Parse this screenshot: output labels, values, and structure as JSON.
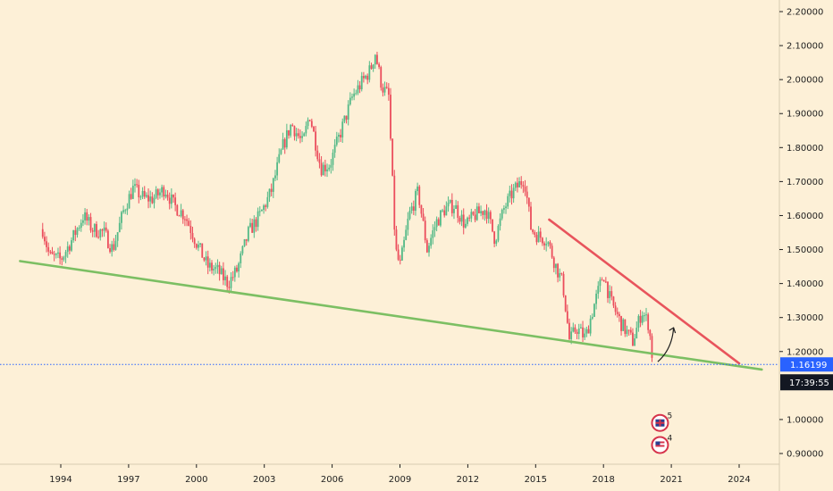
{
  "chart_data": {
    "type": "candlestick",
    "title": "",
    "xlabel": "",
    "ylabel": "",
    "ylim": [
      0.87,
      2.23
    ],
    "xlim": [
      1992.0,
      2026.0
    ],
    "x_ticks": [
      {
        "year": 1994,
        "label": "1994"
      },
      {
        "year": 1997,
        "label": "1997"
      },
      {
        "year": 2000,
        "label": "2000"
      },
      {
        "year": 2003,
        "label": "2003"
      },
      {
        "year": 2006,
        "label": "2006"
      },
      {
        "year": 2009,
        "label": "2009"
      },
      {
        "year": 2012,
        "label": "2012"
      },
      {
        "year": 2015,
        "label": "2015"
      },
      {
        "year": 2018,
        "label": "2018"
      },
      {
        "year": 2021,
        "label": "2021"
      },
      {
        "year": 2024,
        "label": "2024"
      }
    ],
    "y_ticks": [
      {
        "value": 2.2,
        "label": "2.20000"
      },
      {
        "value": 2.1,
        "label": "2.10000"
      },
      {
        "value": 2.0,
        "label": "2.00000"
      },
      {
        "value": 1.9,
        "label": "1.90000"
      },
      {
        "value": 1.8,
        "label": "1.80000"
      },
      {
        "value": 1.7,
        "label": "1.70000"
      },
      {
        "value": 1.6,
        "label": "1.60000"
      },
      {
        "value": 1.5,
        "label": "1.50000"
      },
      {
        "value": 1.4,
        "label": "1.40000"
      },
      {
        "value": 1.3,
        "label": "1.30000"
      },
      {
        "value": 1.2,
        "label": "1.20000"
      },
      {
        "value": 1.0,
        "label": "1.00000"
      },
      {
        "value": 0.9,
        "label": "0.90000"
      }
    ],
    "series": [
      {
        "name": "price",
        "x": [
          1993.2,
          1993.5,
          1994.0,
          1994.5,
          1995.0,
          1995.4,
          1995.9,
          1996.3,
          1996.8,
          1997.2,
          1997.7,
          1998.1,
          1998.6,
          1999.0,
          1999.5,
          2000.0,
          2000.5,
          2000.9,
          2001.4,
          2001.8,
          2002.3,
          2002.8,
          2003.3,
          2003.8,
          2004.2,
          2004.7,
          2005.0,
          2005.5,
          2005.9,
          2006.4,
          2006.9,
          2007.3,
          2007.7,
          2007.9,
          2008.2,
          2008.5,
          2008.8,
          2009.0,
          2009.4,
          2009.8,
          2010.2,
          2010.6,
          2011.0,
          2011.4,
          2011.9,
          2012.3,
          2012.8,
          2013.2,
          2013.6,
          2014.0,
          2014.5,
          2014.8,
          2015.1,
          2015.5,
          2015.9,
          2016.2,
          2016.5,
          2016.8,
          2017.2,
          2017.6,
          2018.0,
          2018.3,
          2018.8,
          2019.3,
          2019.7,
          2020.0,
          2020.2
        ],
        "close": [
          1.56,
          1.48,
          1.47,
          1.53,
          1.6,
          1.56,
          1.55,
          1.5,
          1.62,
          1.68,
          1.65,
          1.65,
          1.68,
          1.63,
          1.6,
          1.52,
          1.45,
          1.44,
          1.4,
          1.44,
          1.55,
          1.6,
          1.67,
          1.8,
          1.87,
          1.81,
          1.9,
          1.74,
          1.75,
          1.85,
          1.95,
          1.99,
          2.03,
          2.08,
          1.98,
          1.95,
          1.5,
          1.45,
          1.6,
          1.67,
          1.5,
          1.58,
          1.62,
          1.63,
          1.57,
          1.6,
          1.62,
          1.53,
          1.62,
          1.67,
          1.71,
          1.56,
          1.54,
          1.53,
          1.45,
          1.4,
          1.23,
          1.27,
          1.24,
          1.34,
          1.43,
          1.35,
          1.28,
          1.23,
          1.32,
          1.28,
          1.16
        ]
      }
    ],
    "trendlines": [
      {
        "name": "support",
        "color": "#7cbf63",
        "points": [
          [
            1992.2,
            1.466
          ],
          [
            2025.0,
            1.147
          ]
        ]
      },
      {
        "name": "resistance",
        "color": "#e8545c",
        "points": [
          [
            2015.6,
            1.588
          ],
          [
            2024.0,
            1.165
          ]
        ]
      }
    ],
    "arrow": {
      "from": [
        2020.4,
        1.17
      ],
      "to": [
        2021.1,
        1.27
      ]
    },
    "current_price": {
      "value": 1.16199,
      "label": "1.16199"
    },
    "countdown": {
      "label": "17:39:55"
    },
    "events": [
      {
        "type": "gb-flag",
        "year": 2020.5,
        "value": 0.99,
        "count": "5"
      },
      {
        "type": "us-flag",
        "year": 2020.5,
        "value": 0.925,
        "count": "4"
      }
    ],
    "colors": {
      "up": "#53b987",
      "down": "#eb4d5c",
      "support": "#7cbf63",
      "resistance": "#e8545c",
      "price_line": "#2962ff",
      "badge": "#2962ff",
      "countdown_bg": "#131722",
      "background": "#fdf0d7"
    }
  }
}
